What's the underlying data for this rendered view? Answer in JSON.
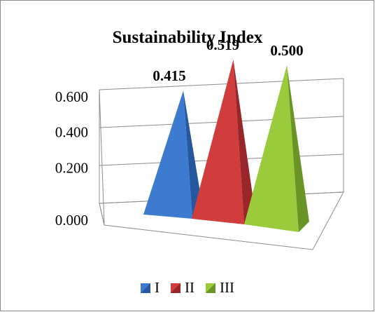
{
  "chart_data": {
    "type": "bar",
    "style": "3d-pyramid",
    "title": "Sustainability Index",
    "xlabel": "",
    "ylabel": "",
    "ylim": [
      0,
      0.6
    ],
    "yticks": [
      "0.000",
      "0.200",
      "0.400",
      "0.600"
    ],
    "grid": true,
    "legend_position": "bottom",
    "series": [
      {
        "name": "I",
        "value": 0.415,
        "label": "0.415",
        "color": "#3d7bd0",
        "dark": "#25589e"
      },
      {
        "name": "II",
        "value": 0.519,
        "label": "0.519",
        "color": "#d13c3c",
        "dark": "#99272a"
      },
      {
        "name": "III",
        "value": 0.5,
        "label": "0.500",
        "color": "#9acb3c",
        "dark": "#6a9426"
      }
    ]
  }
}
